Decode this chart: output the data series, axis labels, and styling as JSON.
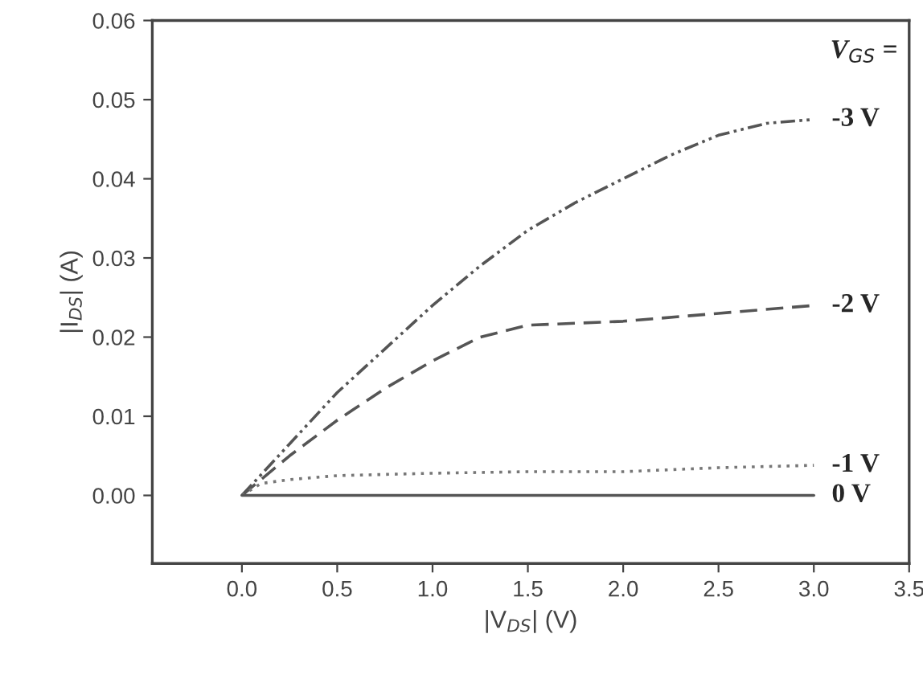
{
  "chart_data": {
    "type": "line",
    "xlabel": "|V$_{DS}$| (V)",
    "ylabel": "|I$_{DS}$| (A)",
    "annotations": [
      "V$_{GS}$ ="
    ],
    "xlim": [
      -0.47,
      3.5
    ],
    "xticks": [
      {
        "value": 0,
        "label": "0.0"
      },
      0.5,
      {
        "value": 1,
        "label": "1.0"
      },
      1.5,
      {
        "value": 2,
        "label": "2.0"
      },
      2.5,
      {
        "value": 3,
        "label": "3.0"
      },
      3.5
    ],
    "ylim": [
      -0.0086,
      0.06
    ],
    "yticks": [
      {
        "value": 0,
        "label": "0.00"
      },
      0.01,
      0.02,
      0.03,
      0.04,
      0.05,
      0.06
    ],
    "grid": false,
    "legend": false,
    "marker": "none",
    "series": [
      {
        "name": "-3 V",
        "color": "#555555",
        "line_style": "dashdotdot",
        "x": [
          0,
          0.25,
          0.5,
          0.75,
          1.0,
          1.25,
          1.5,
          1.75,
          2.0,
          2.25,
          2.5,
          2.75,
          3.0
        ],
        "values": [
          0,
          0.0065,
          0.013,
          0.0185,
          0.024,
          0.029,
          0.0335,
          0.037,
          0.04,
          0.043,
          0.0455,
          0.047,
          0.0475
        ]
      },
      {
        "name": "-2 V",
        "color": "#555555",
        "line_style": "dashed",
        "x": [
          0,
          0.25,
          0.5,
          0.75,
          1.0,
          1.25,
          1.5,
          2.0,
          2.5,
          3.0
        ],
        "values": [
          0,
          0.005,
          0.0095,
          0.0135,
          0.017,
          0.02,
          0.0215,
          0.022,
          0.023,
          0.024
        ]
      },
      {
        "name": "-1 V",
        "color": "#777777",
        "line_style": "dotted",
        "x": [
          0,
          0.1,
          0.25,
          0.5,
          1.0,
          1.5,
          2.0,
          2.5,
          3.0
        ],
        "values": [
          0,
          0.0015,
          0.002,
          0.0025,
          0.0028,
          0.003,
          0.003,
          0.0035,
          0.0038
        ]
      },
      {
        "name": "0 V",
        "color": "#555555",
        "line_style": "solid",
        "x": [
          0,
          3.0
        ],
        "values": [
          0,
          0
        ]
      }
    ]
  }
}
